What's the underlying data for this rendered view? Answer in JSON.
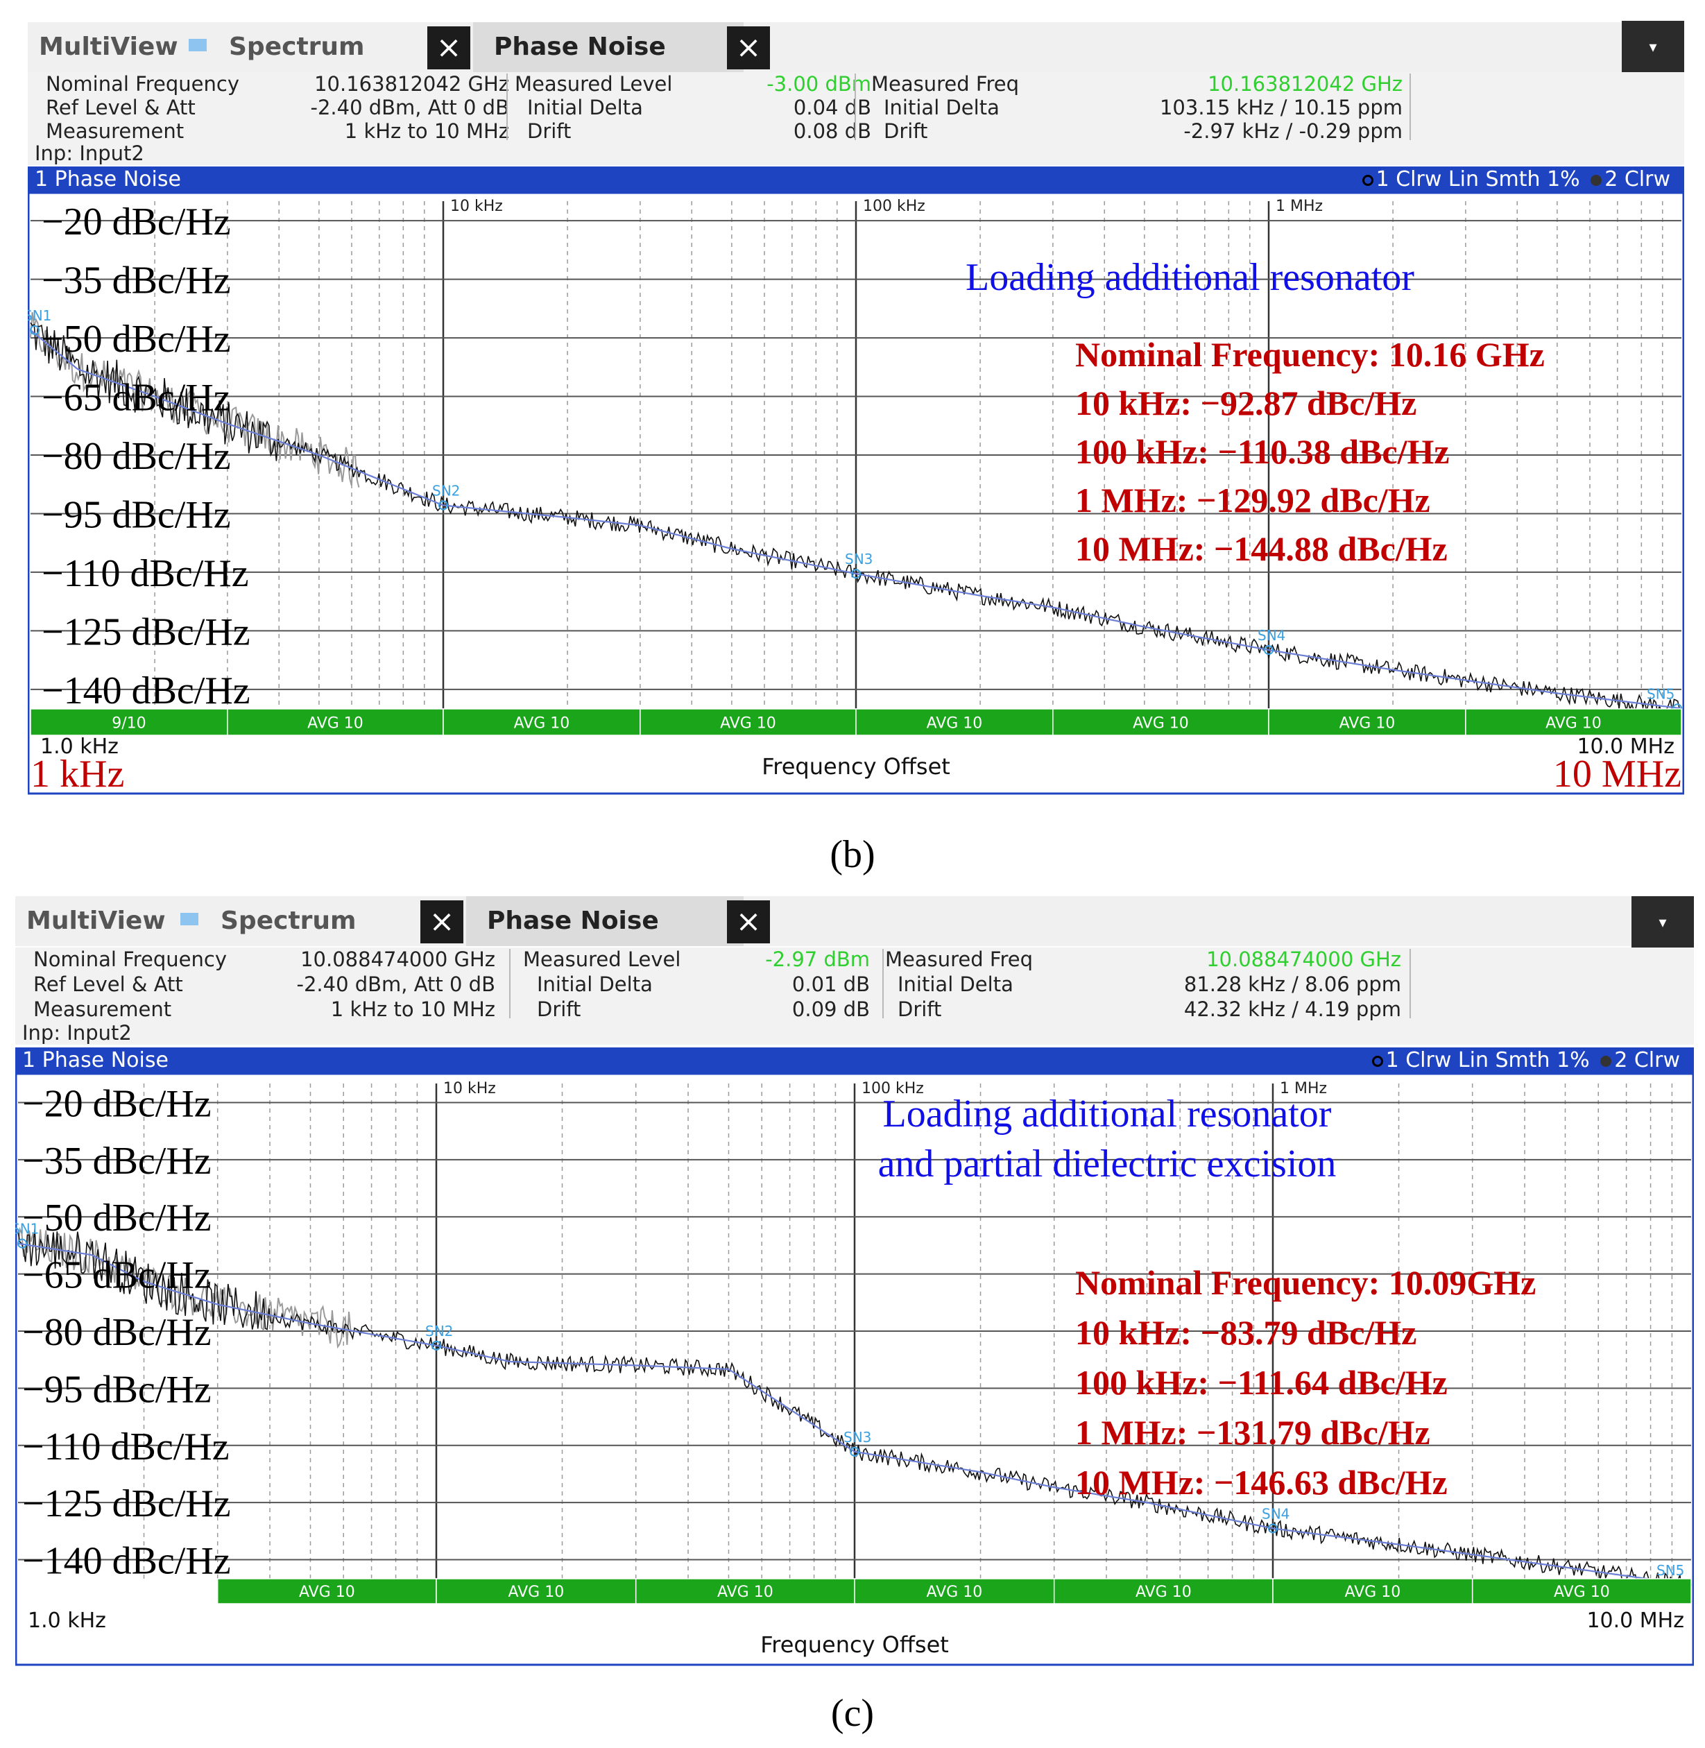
{
  "panels": [
    {
      "id": "b",
      "caption": "(b)",
      "tabs": {
        "multiview": "MultiView",
        "spectrum": "Spectrum",
        "phase_noise": "Phase Noise",
        "close_glyph": "×",
        "dropdown_glyph": "▾"
      },
      "info": {
        "nominal_frequency_label": "Nominal Frequency",
        "nominal_frequency_value": "10.163812042 GHz",
        "ref_level_label": "Ref Level & Att",
        "ref_level_value": "-2.40 dBm, Att 0 dB",
        "measurement_label": "Measurement",
        "measurement_value": "1 kHz to 10 MHz",
        "input_label": "Inp: Input2",
        "measured_level_label": "Measured Level",
        "measured_level_value": "-3.00 dBm",
        "initial_delta_label": "Initial Delta",
        "initial_delta_value": "0.04 dB",
        "drift_label": "Drift",
        "drift_value": "0.08 dB",
        "measured_freq_label": "Measured Freq",
        "measured_freq_value": "10.163812042 GHz",
        "freq_initial_delta_label": "Initial Delta",
        "freq_initial_delta_value": "103.15 kHz / 10.15 ppm",
        "freq_drift_label": "Drift",
        "freq_drift_value": "-2.97 kHz / -0.29 ppm"
      },
      "window_title": "1 Phase Noise",
      "trace_legend": {
        "t1": "1 Clrw Lin Smth 1%",
        "t2": "2 Clrw"
      },
      "colors": {
        "titlebar": "#1e44c2",
        "avg_bar": "#1aa51a",
        "trace_measured": "#111111",
        "trace_smooth": "#6b7fd6",
        "trace_grey": "#9a9a9a",
        "annotation_blue": "#1010e6",
        "annotation_red": "#c00000",
        "marker": "#3aa0e0"
      },
      "chart_data": {
        "type": "line",
        "x_scale": "log",
        "xlim_hz": [
          1000,
          10000000
        ],
        "ylim": [
          -145,
          -15
        ],
        "x_top_ticks": [
          {
            "value": 10000,
            "label": "10 kHz"
          },
          {
            "value": 100000,
            "label": "100 kHz"
          },
          {
            "value": 1000000,
            "label": "1 MHz"
          }
        ],
        "y_grid": [
          -20,
          -35,
          -50,
          -65,
          -80,
          -95,
          -110,
          -125,
          -140
        ],
        "y_labels": [
          "−20 dBc/Hz",
          "−35 dBc/Hz",
          "−50 dBc/Hz",
          "−65 dBc/Hz",
          "−80 dBc/Hz",
          "−95 dBc/Hz",
          "−110 dBc/Hz",
          "−125 dBc/Hz",
          "−140 dBc/Hz"
        ],
        "xlabel": "Frequency Offset",
        "x_start_label": "1.0 kHz",
        "x_stop_label": "10.0 MHz",
        "x_start_overlay": "1 kHz",
        "x_stop_overlay": "10 MHz",
        "avg_labels": [
          "9/10",
          "AVG 10",
          "AVG 10",
          "AVG 10",
          "AVG 10",
          "AVG 10",
          "AVG 10",
          "AVG 10"
        ],
        "series": [
          {
            "points": [
              [
                1000,
                -48
              ],
              [
                1300,
                -58
              ],
              [
                2000,
                -65
              ],
              [
                3000,
                -72
              ],
              [
                5000,
                -80
              ],
              [
                10000,
                -92.87
              ],
              [
                20000,
                -96
              ],
              [
                30000,
                -98
              ],
              [
                50000,
                -104
              ],
              [
                100000,
                -110.38
              ],
              [
                200000,
                -116
              ],
              [
                300000,
                -119
              ],
              [
                500000,
                -124
              ],
              [
                1000000,
                -129.92
              ],
              [
                2000000,
                -135
              ],
              [
                5000000,
                -141
              ],
              [
                10000000,
                -144.88
              ]
            ]
          }
        ],
        "markers": [
          {
            "label": "SN1",
            "x": 1000,
            "y": -48
          },
          {
            "label": "SN2",
            "x": 10000,
            "y": -92.87
          },
          {
            "label": "SN3",
            "x": 100000,
            "y": -110.38
          },
          {
            "label": "SN4",
            "x": 1000000,
            "y": -129.92
          },
          {
            "label": "SN5",
            "x": 10000000,
            "y": -144.88
          }
        ],
        "annotation_title": [
          "Loading additional resonator"
        ],
        "annotation_values": [
          "Nominal Frequency: 10.16 GHz",
          "10 kHz: −92.87 dBc/Hz",
          "100 kHz: −110.38 dBc/Hz",
          "1 MHz: −129.92 dBc/Hz",
          "10 MHz: −144.88 dBc/Hz"
        ]
      }
    },
    {
      "id": "c",
      "caption": "(c)",
      "tabs": {
        "multiview": "MultiView",
        "spectrum": "Spectrum",
        "phase_noise": "Phase Noise",
        "close_glyph": "×",
        "dropdown_glyph": "▾"
      },
      "info": {
        "nominal_frequency_label": "Nominal Frequency",
        "nominal_frequency_value": "10.088474000 GHz",
        "ref_level_label": "Ref Level & Att",
        "ref_level_value": "-2.40 dBm, Att 0 dB",
        "measurement_label": "Measurement",
        "measurement_value": "1 kHz to 10 MHz",
        "input_label": "Inp: Input2",
        "measured_level_label": "Measured Level",
        "measured_level_value": "-2.97 dBm",
        "initial_delta_label": "Initial Delta",
        "initial_delta_value": "0.01 dB",
        "drift_label": "Drift",
        "drift_value": "0.09 dB",
        "measured_freq_label": "Measured Freq",
        "measured_freq_value": "10.088474000 GHz",
        "freq_initial_delta_label": "Initial Delta",
        "freq_initial_delta_value": "81.28 kHz / 8.06 ppm",
        "freq_drift_label": "Drift",
        "freq_drift_value": "42.32 kHz / 4.19 ppm"
      },
      "window_title": "1 Phase Noise",
      "trace_legend": {
        "t1": "1 Clrw Lin Smth 1%",
        "t2": "2 Clrw"
      },
      "colors": {
        "titlebar": "#1e44c2",
        "avg_bar": "#1aa51a",
        "trace_measured": "#111111",
        "trace_smooth": "#6b7fd6",
        "trace_grey": "#9a9a9a",
        "annotation_blue": "#1010e6",
        "annotation_red": "#c00000",
        "marker": "#3aa0e0"
      },
      "chart_data": {
        "type": "line",
        "x_scale": "log",
        "xlim_hz": [
          1000,
          10000000
        ],
        "ylim": [
          -145,
          -15
        ],
        "x_top_ticks": [
          {
            "value": 10000,
            "label": "10 kHz"
          },
          {
            "value": 100000,
            "label": "100 kHz"
          },
          {
            "value": 1000000,
            "label": "1 MHz"
          }
        ],
        "y_grid": [
          -20,
          -35,
          -50,
          -65,
          -80,
          -95,
          -110,
          -125,
          -140
        ],
        "y_labels": [
          "−20 dBc/Hz",
          "−35 dBc/Hz",
          "−50 dBc/Hz",
          "−65 dBc/Hz",
          "−80 dBc/Hz",
          "−95 dBc/Hz",
          "−110 dBc/Hz",
          "−125 dBc/Hz",
          "−140 dBc/Hz"
        ],
        "xlabel": "Frequency Offset",
        "x_start_label": "1.0 kHz",
        "x_stop_label": "10.0 MHz",
        "x_start_overlay": "",
        "x_stop_overlay": "",
        "avg_labels": [
          "",
          "AVG 10",
          "AVG 10",
          "AVG 10",
          "AVG 10",
          "AVG 10",
          "AVG 10",
          "AVG 10"
        ],
        "series": [
          {
            "points": [
              [
                1000,
                -57
              ],
              [
                1500,
                -60
              ],
              [
                2000,
                -67
              ],
              [
                3000,
                -73
              ],
              [
                5000,
                -78
              ],
              [
                10000,
                -83.79
              ],
              [
                15000,
                -88
              ],
              [
                30000,
                -89
              ],
              [
                50000,
                -90
              ],
              [
                100000,
                -111.64
              ],
              [
                200000,
                -117
              ],
              [
                300000,
                -121
              ],
              [
                500000,
                -125
              ],
              [
                1000000,
                -131.79
              ],
              [
                2000000,
                -136
              ],
              [
                5000000,
                -142
              ],
              [
                10000000,
                -146.63
              ]
            ]
          }
        ],
        "markers": [
          {
            "label": "SN1",
            "x": 1000,
            "y": -57
          },
          {
            "label": "SN2",
            "x": 10000,
            "y": -83.79
          },
          {
            "label": "SN3",
            "x": 100000,
            "y": -111.64
          },
          {
            "label": "SN4",
            "x": 1000000,
            "y": -131.79
          },
          {
            "label": "SN5",
            "x": 10000000,
            "y": -146.63
          }
        ],
        "annotation_title": [
          "Loading additional resonator",
          "and partial dielectric excision"
        ],
        "annotation_values": [
          "Nominal Frequency: 10.09GHz",
          "10 kHz: −83.79 dBc/Hz",
          "100 kHz: −111.64 dBc/Hz",
          "1 MHz: −131.79 dBc/Hz",
          "10 MHz: −146.63 dBc/Hz"
        ]
      }
    }
  ]
}
